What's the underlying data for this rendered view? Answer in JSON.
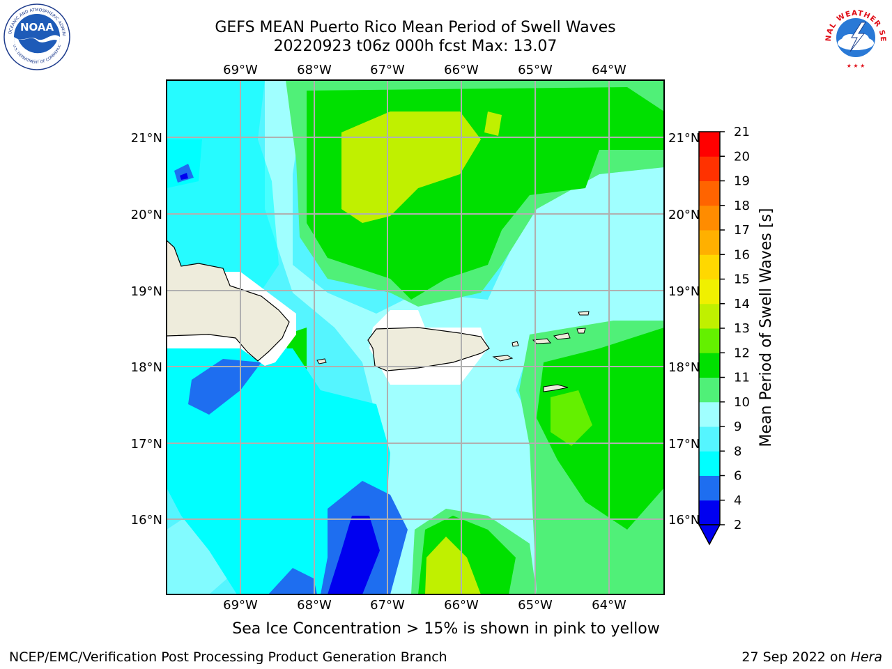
{
  "title_line1": "GEFS MEAN Puerto Rico Mean Period of Swell Waves",
  "title_line2": "20220923 t06z 000h fcst   Max: 13.07",
  "lon_labels": [
    "69°W",
    "68°W",
    "67°W",
    "66°W",
    "65°W",
    "64°W"
  ],
  "lat_labels": [
    "21°N",
    "20°N",
    "19°N",
    "18°N",
    "17°N",
    "16°N"
  ],
  "colorbar": {
    "title": "Mean Period of Swell Waves [s]",
    "levels": [
      "2",
      "4",
      "6",
      "8",
      "9",
      "10",
      "11",
      "12",
      "13",
      "14",
      "15",
      "16",
      "17",
      "18",
      "19",
      "20",
      "21"
    ],
    "colors": [
      "#0000f0",
      "#1e6ef0",
      "#00ffff",
      "#55f5ff",
      "#a0ffff",
      "#50f078",
      "#00e000",
      "#64f000",
      "#c0f000",
      "#f0f000",
      "#ffd800",
      "#ffb000",
      "#ff8c00",
      "#ff6400",
      "#ff3200",
      "#ff0000"
    ],
    "extend": "min"
  },
  "ice_note": "Sea Ice Concentration > 15% is shown in pink to yellow",
  "footer_left": "NCEP/EMC/Verification Post Processing Product Generation Branch",
  "footer_right_date": "27 Sep 2022 on ",
  "footer_right_host": "Hera",
  "logos": {
    "noaa": "NOAA",
    "nws_ring": "NATIONAL WEATHER SERVICE",
    "noaa_ring": "NATIONAL OCEANIC AND ATMOSPHERIC ADMINISTRATION",
    "noaa_ring_bottom": "U.S. DEPARTMENT OF COMMERCE"
  }
}
